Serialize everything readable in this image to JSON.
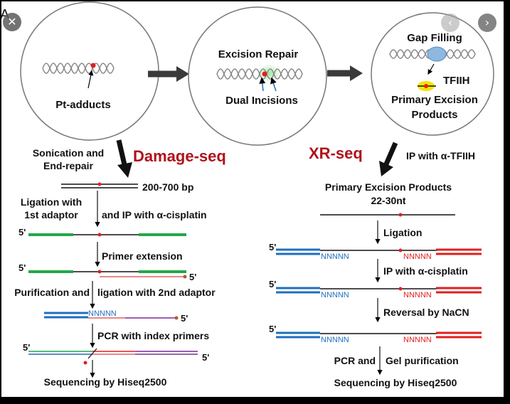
{
  "panel_letter": "A",
  "viewer": {
    "close_icon": "close-icon",
    "prev_icon": "chevron-left-icon",
    "next_icon": "chevron-right-icon"
  },
  "top": {
    "circle1_label": "Pt-adducts",
    "circle2_title": "Excision Repair",
    "circle2_label": "Dual Incisions",
    "circle3_title": "Gap Filling",
    "circle3_tfiih": "TFIIH",
    "circle3_label1": "Primary Excision",
    "circle3_label2": "Products"
  },
  "damage_seq": {
    "title": "Damage-seq",
    "sonication_1": "Sonication and",
    "sonication_2": "End-repair",
    "size": "200-700 bp",
    "ligation_1": "Ligation with",
    "ligation_2": "1st adaptor",
    "ip": "and IP with α-cisplatin",
    "primer_ext": "Primer extension",
    "purif_left": "Purification and",
    "purif_right": "ligation with 2nd adaptor",
    "pcr": "PCR with index primers",
    "seq": "Sequencing by Hiseq2500",
    "five_prime": "5'",
    "nnnnn": "NNNNN"
  },
  "xr_seq": {
    "title": "XR-seq",
    "ip_tfiih": "IP with α-TFIIH",
    "products_1": "Primary Excision Products",
    "products_2": "22-30nt",
    "ligation": "Ligation",
    "ip_cis": "IP with α-cisplatin",
    "reversal": "Reversal by NaCN",
    "pcr_left": "PCR and",
    "pcr_right": "Gel purification",
    "seq": "Sequencing by Hiseq2500",
    "five_prime": "5'",
    "nnnnn": "NNNNN"
  },
  "colors": {
    "red": "#e02020",
    "blue": "#1f6fbf",
    "green": "#22a84a",
    "purple": "#7b2a9a",
    "darkred": "#b0121b"
  }
}
